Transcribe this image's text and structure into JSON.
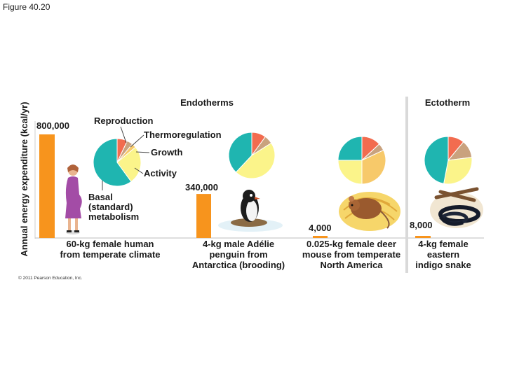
{
  "figure_caption": "Figure 40.20",
  "copyright": "© 2011 Pearson Education, Inc.",
  "colors": {
    "bar": "#f7941d",
    "reproduction": "#f26c4f",
    "thermoregulation": "#c9a27e",
    "growth": "#f7c96a",
    "activity": "#fbf48a",
    "basal": "#1fb5b0"
  },
  "chart_data": {
    "type": "bar",
    "ylabel": "Annual energy expenditure (kcal/yr)",
    "group_labels": {
      "endotherms": "Endotherms",
      "ectotherm": "Ectotherm"
    },
    "categories": [
      [
        "60-kg female human",
        "from temperate climate"
      ],
      [
        "4-kg male Adélie",
        "penguin from",
        "Antarctica (brooding)"
      ],
      [
        "0.025-kg female deer",
        "mouse from temperate",
        "North America"
      ],
      [
        "4-kg female",
        "eastern",
        "indigo snake"
      ]
    ],
    "values": [
      800000,
      340000,
      4000,
      8000
    ],
    "value_labels": [
      "800,000",
      "340,000",
      "4,000",
      "8,000"
    ],
    "pie_legend": {
      "reproduction": "Reproduction",
      "thermoregulation": "Thermoregulation",
      "growth": "Growth",
      "activity": "Activity",
      "basal": [
        "Basal",
        "(standard)",
        "metabolism"
      ]
    },
    "pies": [
      [
        {
          "c": "reproduction",
          "v": 7
        },
        {
          "c": "thermoregulation",
          "v": 4
        },
        {
          "c": "growth",
          "v": 3
        },
        {
          "c": "activity",
          "v": 26
        },
        {
          "c": "basal",
          "v": 60
        }
      ],
      [
        {
          "c": "reproduction",
          "v": 10
        },
        {
          "c": "thermoregulation",
          "v": 6
        },
        {
          "c": "activity",
          "v": 46
        },
        {
          "c": "basal",
          "v": 38
        }
      ],
      [
        {
          "c": "reproduction",
          "v": 13
        },
        {
          "c": "thermoregulation",
          "v": 5
        },
        {
          "c": "growth",
          "v": 32
        },
        {
          "c": "activity",
          "v": 25
        },
        {
          "c": "basal",
          "v": 25
        }
      ],
      [
        {
          "c": "reproduction",
          "v": 11
        },
        {
          "c": "thermoregulation",
          "v": 12
        },
        {
          "c": "activity",
          "v": 30
        },
        {
          "c": "basal",
          "v": 47
        }
      ]
    ]
  }
}
